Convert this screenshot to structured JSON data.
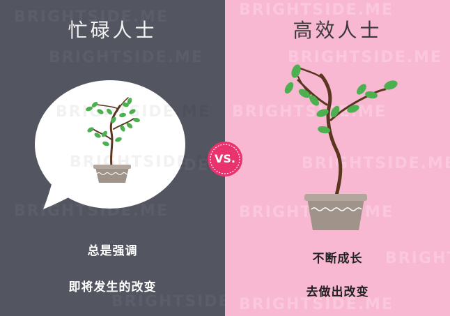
{
  "left": {
    "title": "忙碌人士",
    "caption_line1": "总是强调",
    "caption_line2": "即将发生的改变",
    "background_color": "#535560"
  },
  "right": {
    "title": "高效人士",
    "caption_line1": "不断成长",
    "caption_line2": "去做出改变",
    "background_color": "#f9b8d2"
  },
  "badge": {
    "label": "VS.",
    "color": "#e8336e"
  },
  "watermark": {
    "text": "BRIGHTSIDE.ME"
  }
}
